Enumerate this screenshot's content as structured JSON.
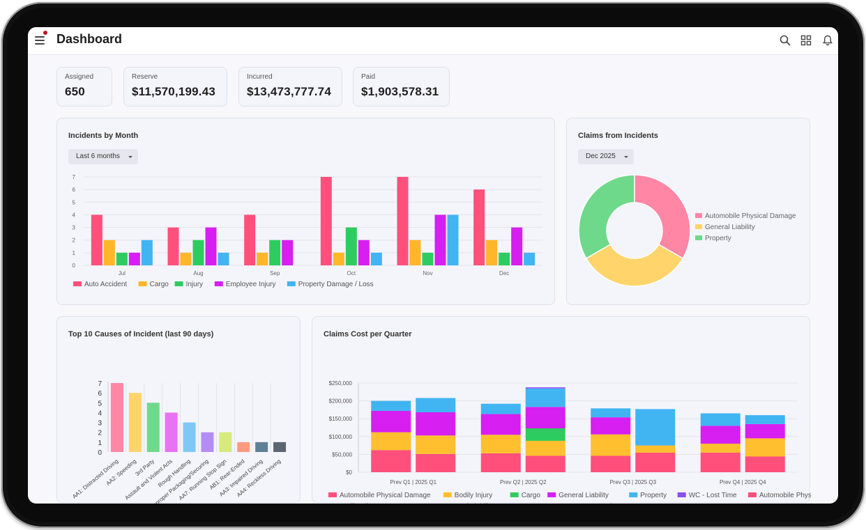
{
  "header": {
    "title": "Dashboard"
  },
  "icons": {
    "menu": "menu-icon",
    "search": "search-icon",
    "grid": "grid-icon",
    "bell": "bell-icon"
  },
  "kpis": [
    {
      "label": "Assigned",
      "value": "650"
    },
    {
      "label": "Reserve",
      "value": "$11,570,199.43"
    },
    {
      "label": "Incurred",
      "value": "$13,473,777.74"
    },
    {
      "label": "Paid",
      "value": "$1,903,578.31"
    }
  ],
  "incidents": {
    "title": "Incidents by Month",
    "filter": "Last 6 months",
    "chart_data": {
      "type": "bar",
      "categories": [
        "Jul",
        "Aug",
        "Sep",
        "Oct",
        "Nov",
        "Dec"
      ],
      "ylim": [
        0,
        7
      ],
      "yticks": [
        0,
        1,
        2,
        3,
        4,
        5,
        6,
        7
      ],
      "series": [
        {
          "name": "Auto Accident",
          "color": "#ff4f7b",
          "values": [
            4,
            3,
            4,
            7,
            7,
            6
          ]
        },
        {
          "name": "Cargo",
          "color": "#ffb629",
          "values": [
            2,
            1,
            1,
            1,
            2,
            2
          ]
        },
        {
          "name": "Injury",
          "color": "#2ecc60",
          "values": [
            1,
            2,
            2,
            3,
            1,
            1
          ]
        },
        {
          "name": "Employee Injury",
          "color": "#d61ff0",
          "values": [
            1,
            3,
            2,
            2,
            4,
            3
          ]
        },
        {
          "name": "Property Damage / Loss",
          "color": "#41b4f2",
          "values": [
            2,
            1,
            0,
            1,
            4,
            1
          ]
        }
      ]
    }
  },
  "claims_incidents": {
    "title": "Claims from Incidents",
    "filter": "Dec 2025",
    "chart_data": {
      "type": "pie",
      "donut": true,
      "labels": [
        "Automobile Physical Damage",
        "General Liability",
        "Property"
      ],
      "values": [
        2,
        2,
        2
      ],
      "colors": [
        "#ff86a5",
        "#ffd46b",
        "#6fd98b"
      ],
      "legend": "right"
    }
  },
  "causes": {
    "title": "Top 10 Causes of Incident (last 90 days)",
    "chart_data": {
      "type": "bar",
      "categories": [
        "AA1: Distracted Driving",
        "AA2: Speeding",
        "3rd Party",
        "Assault and Violent Acts",
        "Rough Handling",
        "Improper Packaging/Securing",
        "AA7: Running Stop Sign",
        "AB1: Rear-Ended",
        "AA3: Impaired Driving",
        "AA4: Reckless Driving"
      ],
      "values": [
        7,
        6,
        5,
        4,
        3,
        2,
        2,
        1,
        1,
        1
      ],
      "colors": [
        "#ff86a5",
        "#ffd46b",
        "#6fd98b",
        "#e872f4",
        "#7ec8f6",
        "#b48cf5",
        "#d8ea7c",
        "#ff9a80",
        "#5f7f96",
        "#5c6670"
      ],
      "ylim": [
        0,
        7
      ],
      "yticks": [
        0,
        1,
        2,
        3,
        4,
        5,
        6,
        7
      ]
    }
  },
  "quarterly": {
    "title": "Claims Cost per Quarter",
    "chart_data": {
      "type": "bar",
      "stacked": true,
      "groups": [
        "Prev Q1 | 2025 Q1",
        "Prev Q2 | 2025 Q2",
        "Prev Q3 | 2025 Q3",
        "Prev Q4 | 2025 Q4"
      ],
      "ylim": [
        0,
        250000
      ],
      "yticks": [
        "$0",
        "$50,000",
        "$100,000",
        "$150,000",
        "$200,000",
        "$250,000"
      ],
      "series": [
        {
          "name": "Automobile Physical Damage",
          "color": "#ff4f7b",
          "stack": "prev",
          "values": [
            62000,
            53000,
            46000,
            55000
          ]
        },
        {
          "name": "Bodily Injury",
          "color": "#ffbf2e",
          "stack": "prev",
          "values": [
            50000,
            52000,
            60000,
            25000
          ]
        },
        {
          "name": "Cargo",
          "color": "#2ecc60",
          "stack": "prev",
          "values": [
            0,
            0,
            0,
            0
          ]
        },
        {
          "name": "General Liability",
          "color": "#d61ff0",
          "stack": "prev",
          "values": [
            60000,
            58000,
            48000,
            50000
          ]
        },
        {
          "name": "Property",
          "color": "#41b4f2",
          "stack": "prev",
          "values": [
            28000,
            29000,
            25000,
            35000
          ]
        },
        {
          "name": "WC - Lost Time",
          "color": "#8a4df0",
          "stack": "prev",
          "values": [
            0,
            0,
            0,
            0
          ]
        },
        {
          "name": "Automobile Physical Damage",
          "color": "#ff4f7b",
          "stack": "current",
          "values": [
            51000,
            46000,
            55000,
            44000
          ]
        },
        {
          "name": "Bodily Injury",
          "color": "#ffbf2e",
          "stack": "current",
          "values": [
            52000,
            42000,
            20000,
            51000
          ]
        },
        {
          "name": "Cargo",
          "color": "#2ecc60",
          "stack": "current",
          "values": [
            0,
            35000,
            0,
            0
          ]
        },
        {
          "name": "General Liability",
          "color": "#d61ff0",
          "stack": "current",
          "values": [
            65000,
            60000,
            0,
            40000
          ]
        },
        {
          "name": "Property",
          "color": "#41b4f2",
          "stack": "current",
          "values": [
            40000,
            52000,
            102000,
            25000
          ]
        },
        {
          "name": "WC - Lost Time",
          "color": "#8a4df0",
          "stack": "current",
          "values": [
            0,
            3000,
            0,
            0
          ]
        }
      ],
      "legend": "bottom"
    }
  }
}
